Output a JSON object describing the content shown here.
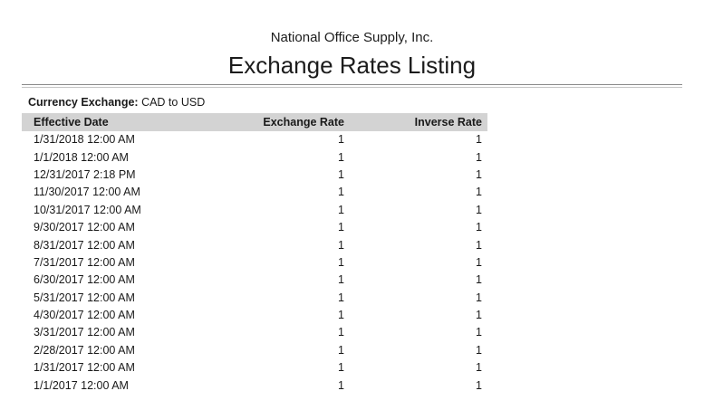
{
  "page": {
    "company_name": "National Office Supply, Inc.",
    "report_title": "Exchange Rates Listing"
  },
  "filter": {
    "label": "Currency Exchange:",
    "value": "CAD to USD"
  },
  "table": {
    "columns": [
      "Effective Date",
      "Exchange Rate",
      "Inverse Rate"
    ],
    "rows": [
      [
        "1/31/2018 12:00 AM",
        "1",
        "1"
      ],
      [
        "1/1/2018 12:00 AM",
        "1",
        "1"
      ],
      [
        "12/31/2017 2:18 PM",
        "1",
        "1"
      ],
      [
        "11/30/2017 12:00 AM",
        "1",
        "1"
      ],
      [
        "10/31/2017 12:00 AM",
        "1",
        "1"
      ],
      [
        "9/30/2017 12:00 AM",
        "1",
        "1"
      ],
      [
        "8/31/2017 12:00 AM",
        "1",
        "1"
      ],
      [
        "7/31/2017 12:00 AM",
        "1",
        "1"
      ],
      [
        "6/30/2017 12:00 AM",
        "1",
        "1"
      ],
      [
        "5/31/2017 12:00 AM",
        "1",
        "1"
      ],
      [
        "4/30/2017 12:00 AM",
        "1",
        "1"
      ],
      [
        "3/31/2017 12:00 AM",
        "1",
        "1"
      ],
      [
        "2/28/2017 12:00 AM",
        "1",
        "1"
      ],
      [
        "1/31/2017 12:00 AM",
        "1",
        "1"
      ],
      [
        "1/1/2017 12:00 AM",
        "1",
        "1"
      ]
    ]
  },
  "colors": {
    "header_bg": "#d3d3d3",
    "rule_dark": "#8a8a8a",
    "rule_light": "#c4c4c4",
    "text": "#1a1a1a"
  }
}
